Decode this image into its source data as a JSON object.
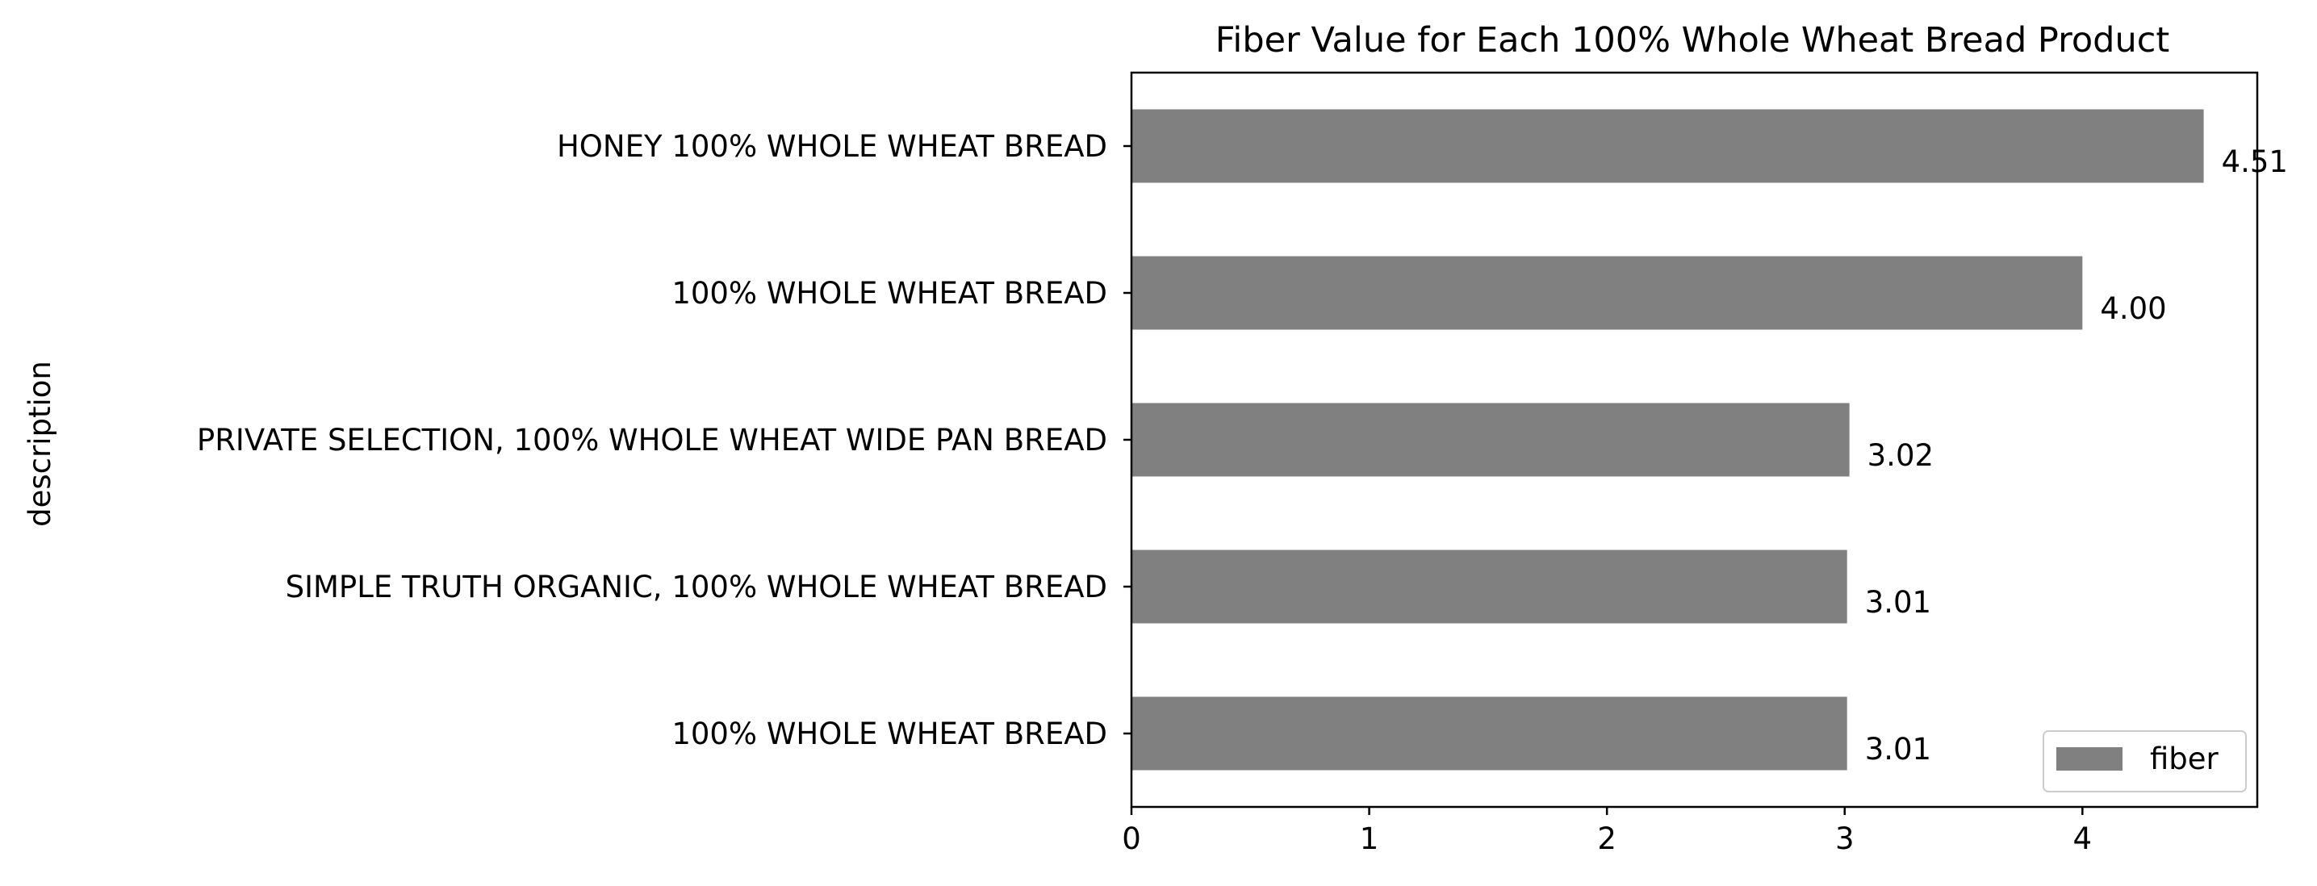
{
  "chart_data": {
    "type": "bar",
    "orientation": "horizontal",
    "title": "Fiber Value for Each 100% Whole Wheat Bread Product",
    "xlabel": "",
    "ylabel": "description",
    "categories": [
      "HONEY 100% WHOLE WHEAT BREAD",
      "100% WHOLE WHEAT BREAD",
      "PRIVATE SELECTION, 100% WHOLE WHEAT WIDE PAN BREAD",
      "SIMPLE TRUTH ORGANIC, 100% WHOLE WHEAT BREAD",
      "100% WHOLE WHEAT BREAD"
    ],
    "series": [
      {
        "name": "fiber",
        "values": [
          4.51,
          4.0,
          3.02,
          3.01,
          3.01
        ],
        "color": "#808080"
      }
    ],
    "data_labels": [
      "4.51",
      "4.00",
      "3.02",
      "3.01",
      "3.01"
    ],
    "xticks": [
      0,
      1,
      2,
      3,
      4
    ],
    "xlim": [
      0,
      4.7355
    ],
    "grid": false,
    "legend_position": "lower-right"
  }
}
